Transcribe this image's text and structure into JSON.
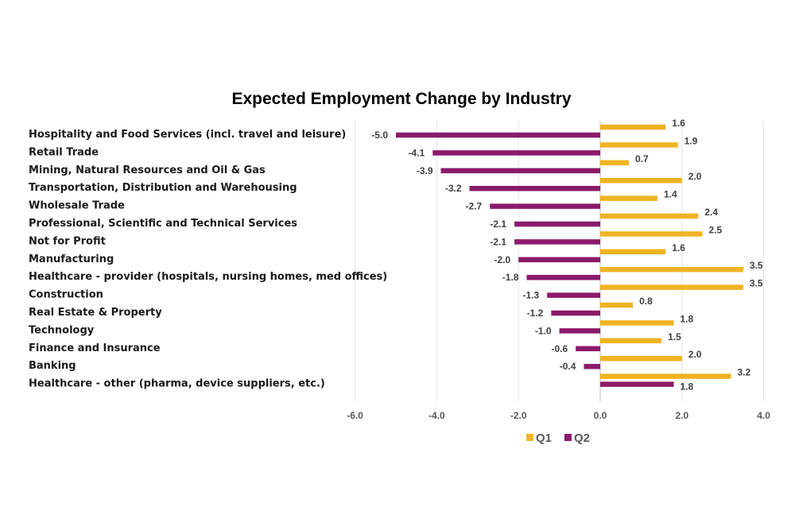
{
  "chart_data": {
    "type": "bar",
    "orientation": "horizontal",
    "title": "Expected Employment Change by Industry",
    "xlabel": "",
    "ylabel": "",
    "xlim": [
      -6.0,
      4.0
    ],
    "ticks": [
      "-6.0",
      "-4.0",
      "-2.0",
      "0.0",
      "2.0",
      "4.0"
    ],
    "tick_values": [
      -6,
      -4,
      -2,
      0,
      2,
      4
    ],
    "grid": true,
    "legend_position": "bottom",
    "categories": [
      "Hospitality and Food Services (incl. travel and leisure)",
      "Retail Trade",
      "Mining, Natural Resources and Oil & Gas",
      "Transportation, Distribution and Warehousing",
      "Wholesale Trade",
      "Professional, Scientific and Technical Services",
      "Not for Profit",
      "Manufacturing",
      "Healthcare - provider (hospitals, nursing homes, med offices)",
      "Construction",
      "Real Estate & Property",
      "Technology",
      "Finance and Insurance",
      "Banking",
      "Healthcare - other (pharma, device suppliers, etc.)"
    ],
    "series": [
      {
        "name": "Q1",
        "color": "#F0B323",
        "values": [
          1.6,
          1.9,
          0.7,
          2.0,
          1.4,
          2.4,
          2.5,
          1.6,
          3.5,
          3.5,
          0.8,
          1.8,
          1.5,
          2.0,
          3.2
        ],
        "labels": [
          "1.6",
          "1.9",
          "0.7",
          "2.0",
          "1.4",
          "2.4",
          "2.5",
          "1.6",
          "3.5",
          "3.5",
          "0.8",
          "1.8",
          "1.5",
          "2.0",
          "3.2"
        ]
      },
      {
        "name": "Q2",
        "color": "#8B1A6B",
        "values": [
          -5.0,
          -4.1,
          -3.9,
          -3.2,
          -2.7,
          -2.1,
          -2.1,
          -2.0,
          -1.8,
          -1.3,
          -1.2,
          -1.0,
          -0.6,
          -0.4,
          1.8
        ],
        "labels": [
          "-5.0",
          "-4.1",
          "-3.9",
          "-3.2",
          "-2.7",
          "-2.1",
          "-2.1",
          "-2.0",
          "-1.8",
          "-1.3",
          "-1.2",
          "-1.0",
          "-0.6",
          "-0.4",
          "1.8"
        ]
      }
    ]
  }
}
